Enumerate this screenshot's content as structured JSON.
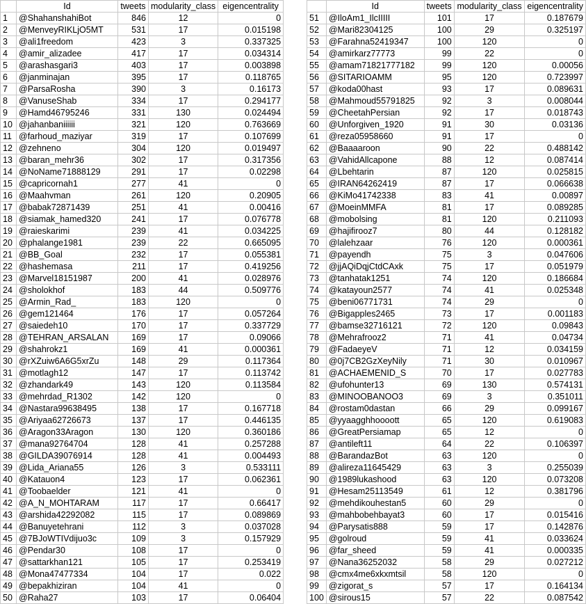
{
  "headers": [
    "",
    "Id",
    "tweets",
    "modularity_class",
    "eigencentrality"
  ],
  "left_rows": [
    [
      "1",
      "@ShahanshahiBot",
      "846",
      "12",
      "0"
    ],
    [
      "2",
      "@MenveyRIKLjO5MT",
      "531",
      "17",
      "0.015198"
    ],
    [
      "3",
      "@ali1freedom",
      "423",
      "3",
      "0.337325"
    ],
    [
      "4",
      "@amir_alizadee",
      "417",
      "17",
      "0.034314"
    ],
    [
      "5",
      "@arashasgari3",
      "403",
      "17",
      "0.003898"
    ],
    [
      "6",
      "@janminajan",
      "395",
      "17",
      "0.118765"
    ],
    [
      "7",
      "@ParsaRosha",
      "390",
      "3",
      "0.16173"
    ],
    [
      "8",
      "@VanuseShab",
      "334",
      "17",
      "0.294177"
    ],
    [
      "9",
      "@Hamd46795246",
      "331",
      "130",
      "0.024494"
    ],
    [
      "10",
      "@jahanbaniiiiii",
      "321",
      "120",
      "0.763669"
    ],
    [
      "11",
      "@farhoud_maziyar",
      "319",
      "17",
      "0.107699"
    ],
    [
      "12",
      "@zehneno",
      "304",
      "120",
      "0.019497"
    ],
    [
      "13",
      "@baran_mehr36",
      "302",
      "17",
      "0.317356"
    ],
    [
      "14",
      "@NoName71888129",
      "291",
      "17",
      "0.02298"
    ],
    [
      "15",
      "@capricornah1",
      "277",
      "41",
      "0"
    ],
    [
      "16",
      "@Maahvman",
      "261",
      "120",
      "0.20905"
    ],
    [
      "17",
      "@babak72871439",
      "251",
      "41",
      "0.00416"
    ],
    [
      "18",
      "@siamak_hamed320",
      "241",
      "17",
      "0.076778"
    ],
    [
      "19",
      "@raieskarimi",
      "239",
      "41",
      "0.034225"
    ],
    [
      "20",
      "@phalange1981",
      "239",
      "22",
      "0.665095"
    ],
    [
      "21",
      "@BB_Goal",
      "232",
      "17",
      "0.055381"
    ],
    [
      "22",
      "@hashemasa",
      "211",
      "17",
      "0.419256"
    ],
    [
      "23",
      "@Marvel18151987",
      "200",
      "41",
      "0.028976"
    ],
    [
      "24",
      "@sholokhof",
      "183",
      "44",
      "0.509776"
    ],
    [
      "25",
      "@Armin_Rad_",
      "183",
      "120",
      "0"
    ],
    [
      "26",
      "@gem121464",
      "176",
      "17",
      "0.057264"
    ],
    [
      "27",
      "@saiedeh10",
      "170",
      "17",
      "0.337729"
    ],
    [
      "28",
      "@TEHRAN_ARSALAN",
      "169",
      "17",
      "0.09066"
    ],
    [
      "29",
      "@shahrokz1",
      "169",
      "41",
      "0.000361"
    ],
    [
      "30",
      "@rXZuiw6A6G5xrZu",
      "148",
      "29",
      "0.117364"
    ],
    [
      "31",
      "@motlagh12",
      "147",
      "17",
      "0.113742"
    ],
    [
      "32",
      "@zhandark49",
      "143",
      "120",
      "0.113584"
    ],
    [
      "33",
      "@mehrdad_R1302",
      "142",
      "120",
      "0"
    ],
    [
      "34",
      "@Nastara99638495",
      "138",
      "17",
      "0.167718"
    ],
    [
      "35",
      "@Ariyaa62726673",
      "137",
      "17",
      "0.446135"
    ],
    [
      "36",
      "@Aragon33Aragon",
      "130",
      "120",
      "0.360186"
    ],
    [
      "37",
      "@mana92764704",
      "128",
      "41",
      "0.257288"
    ],
    [
      "38",
      "@GILDA39076914",
      "128",
      "41",
      "0.004493"
    ],
    [
      "39",
      "@Lida_Ariana55",
      "126",
      "3",
      "0.533111"
    ],
    [
      "40",
      "@Katauon4",
      "123",
      "17",
      "0.062361"
    ],
    [
      "41",
      "@Toobaelder",
      "121",
      "41",
      "0"
    ],
    [
      "42",
      "@A_N_MOHTARAM",
      "117",
      "17",
      "0.66417"
    ],
    [
      "43",
      "@arshida42292082",
      "115",
      "17",
      "0.089869"
    ],
    [
      "44",
      "@Banuyetehrani",
      "112",
      "3",
      "0.037028"
    ],
    [
      "45",
      "@7BJoWTIVdijuo3c",
      "109",
      "3",
      "0.157929"
    ],
    [
      "46",
      "@Pendar30",
      "108",
      "17",
      "0"
    ],
    [
      "47",
      "@sattarkhan121",
      "105",
      "17",
      "0.253419"
    ],
    [
      "48",
      "@Mona47477334",
      "104",
      "17",
      "0.022"
    ],
    [
      "49",
      "@bepakhiziran",
      "104",
      "41",
      "0"
    ],
    [
      "50",
      "@Raha27",
      "103",
      "17",
      "0.06404"
    ]
  ],
  "right_rows": [
    [
      "51",
      "@IloAm1_IlcIIIII",
      "101",
      "17",
      "0.187679"
    ],
    [
      "52",
      "@Mari82304125",
      "100",
      "29",
      "0.325197"
    ],
    [
      "53",
      "@Farahna52419347",
      "100",
      "120",
      "0"
    ],
    [
      "54",
      "@amirkarz77773",
      "99",
      "22",
      "0"
    ],
    [
      "55",
      "@amam71821777182",
      "99",
      "120",
      "0.00056"
    ],
    [
      "56",
      "@SITARIOAMM",
      "95",
      "120",
      "0.723997"
    ],
    [
      "57",
      "@koda00hast",
      "93",
      "17",
      "0.089631"
    ],
    [
      "58",
      "@Mahmoud55791825",
      "92",
      "3",
      "0.008044"
    ],
    [
      "59",
      "@CheetahPersian",
      "92",
      "17",
      "0.018743"
    ],
    [
      "60",
      "@Unforgiven_1920",
      "91",
      "30",
      "0.03136"
    ],
    [
      "61",
      "@reza05958660",
      "91",
      "17",
      "0"
    ],
    [
      "62",
      "@Baaaaroon",
      "90",
      "22",
      "0.488142"
    ],
    [
      "63",
      "@VahidAllcapone",
      "88",
      "12",
      "0.087414"
    ],
    [
      "64",
      "@Lbehtarin",
      "87",
      "120",
      "0.025815"
    ],
    [
      "65",
      "@IRAN64262419",
      "87",
      "17",
      "0.066638"
    ],
    [
      "66",
      "@KiMo41742338",
      "83",
      "41",
      "0.00897"
    ],
    [
      "67",
      "@MoeinMMFA",
      "81",
      "17",
      "0.089285"
    ],
    [
      "68",
      "@mobolsing",
      "81",
      "120",
      "0.211093"
    ],
    [
      "69",
      "@hajifirooz7",
      "80",
      "44",
      "0.128182"
    ],
    [
      "70",
      "@lalehzaar",
      "76",
      "120",
      "0.000361"
    ],
    [
      "71",
      "@payendh",
      "75",
      "3",
      "0.047606"
    ],
    [
      "72",
      "@jjAQiDqjCtdCAxk",
      "75",
      "17",
      "0.051979"
    ],
    [
      "73",
      "@tanhatak1251",
      "74",
      "120",
      "0.186684"
    ],
    [
      "74",
      "@katayoun2577",
      "74",
      "41",
      "0.025348"
    ],
    [
      "75",
      "@beni06771731",
      "74",
      "29",
      "0"
    ],
    [
      "76",
      "@Bigapples2465",
      "73",
      "17",
      "0.001183"
    ],
    [
      "77",
      "@bamse32716121",
      "72",
      "120",
      "0.09843"
    ],
    [
      "78",
      "@Mehrafrooz2",
      "71",
      "41",
      "0.04734"
    ],
    [
      "79",
      "@FadaeyeV",
      "71",
      "12",
      "0.034159"
    ],
    [
      "80",
      "@0j7CB2GzXeyNily",
      "71",
      "30",
      "0.010967"
    ],
    [
      "81",
      "@ACHAEMENID_S",
      "70",
      "17",
      "0.027783"
    ],
    [
      "82",
      "@ufohunter13",
      "69",
      "130",
      "0.574131"
    ],
    [
      "83",
      "@MINOOBANOO3",
      "69",
      "3",
      "0.351011"
    ],
    [
      "84",
      "@rostam0dastan",
      "66",
      "29",
      "0.099167"
    ],
    [
      "85",
      "@yyaagghhoooott",
      "65",
      "120",
      "0.619083"
    ],
    [
      "86",
      "@GreatPersiamap",
      "65",
      "12",
      "0"
    ],
    [
      "87",
      "@antileft11",
      "64",
      "22",
      "0.106397"
    ],
    [
      "88",
      "@BarandazBot",
      "63",
      "120",
      "0"
    ],
    [
      "89",
      "@alireza11645429",
      "63",
      "3",
      "0.255039"
    ],
    [
      "90",
      "@1989lukashood",
      "63",
      "120",
      "0.073208"
    ],
    [
      "91",
      "@Hesam25113549",
      "61",
      "12",
      "0.381796"
    ],
    [
      "92",
      "@mehdikouhestan5",
      "60",
      "29",
      "0"
    ],
    [
      "93",
      "@mahbobehbayat3",
      "60",
      "17",
      "0.015416"
    ],
    [
      "94",
      "@Parysatis888",
      "59",
      "17",
      "0.142876"
    ],
    [
      "95",
      "@golroud",
      "59",
      "41",
      "0.033624"
    ],
    [
      "96",
      "@far_sheed",
      "59",
      "41",
      "0.000335"
    ],
    [
      "97",
      "@Nana36252032",
      "58",
      "29",
      "0.027212"
    ],
    [
      "98",
      "@cmx4me6xkxmtsil",
      "58",
      "120",
      "0"
    ],
    [
      "99",
      "@zigorat_s",
      "57",
      "17",
      "0.164134"
    ],
    [
      "100",
      "@sirous15",
      "57",
      "22",
      "0.087542"
    ]
  ]
}
